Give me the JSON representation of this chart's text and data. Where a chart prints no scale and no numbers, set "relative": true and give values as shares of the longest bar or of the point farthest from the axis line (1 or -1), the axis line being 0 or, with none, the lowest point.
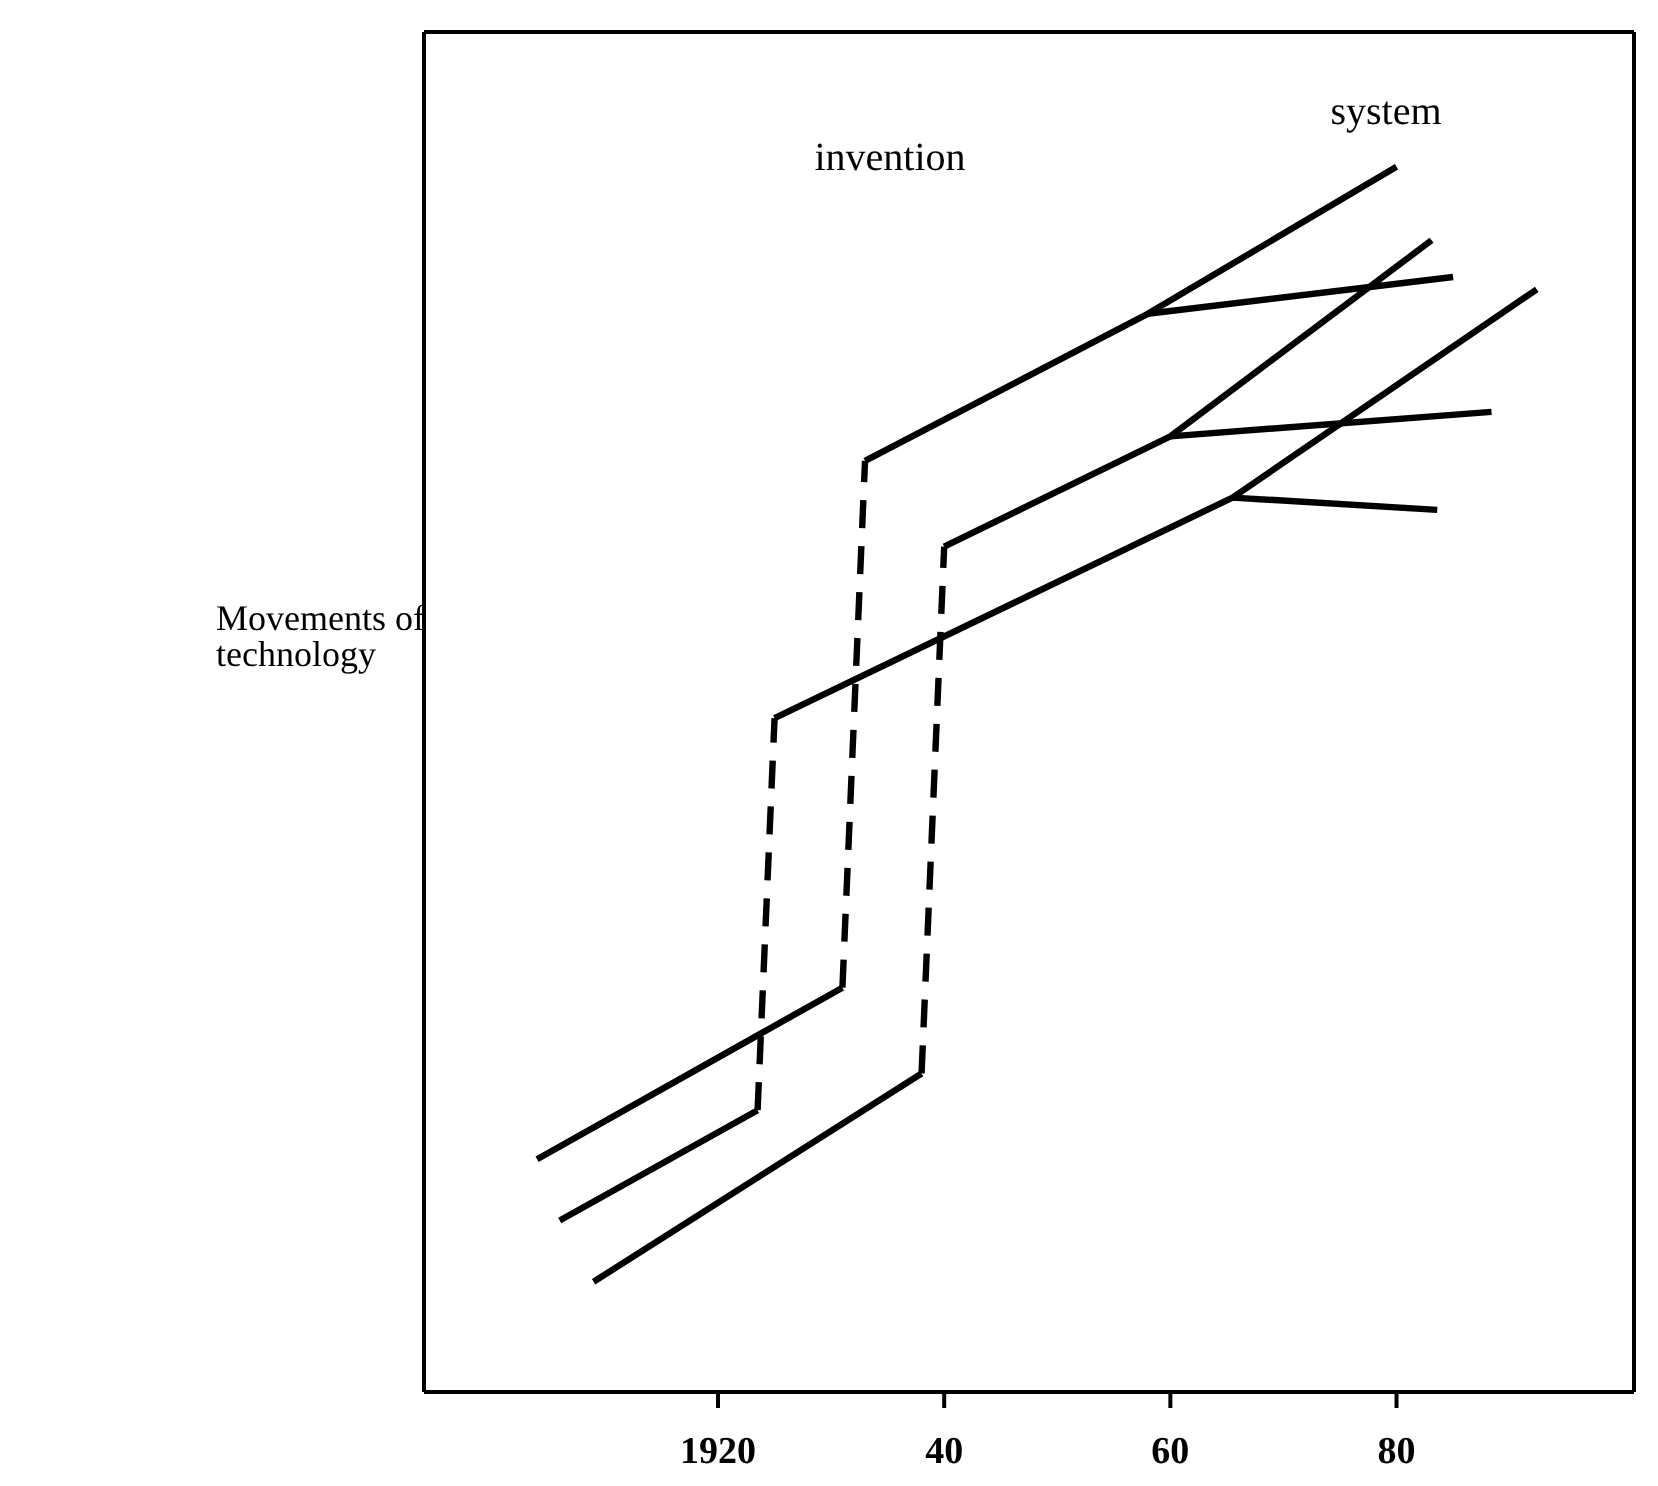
{
  "chart_data": {
    "type": "line",
    "relative": true,
    "ylabel": "Movements of technology",
    "annotations": [
      "invention",
      "system"
    ],
    "xlim": [
      1894,
      2001
    ],
    "xticks": [
      {
        "value": 1920,
        "label": "1920"
      },
      {
        "value": 1940,
        "label": "40"
      },
      {
        "value": 1960,
        "label": "60"
      },
      {
        "value": 1980,
        "label": "80"
      }
    ],
    "color": "#000000",
    "series": [
      {
        "x": [
          1904,
          1931
        ],
        "values": [
          0.19,
          0.33
        ]
      },
      {
        "x": [
          1931,
          1933
        ],
        "values": [
          0.33,
          0.76
        ],
        "line_style": "dashed"
      },
      {
        "x": [
          1933,
          1958,
          1980
        ],
        "values": [
          0.76,
          0.88,
          1.0
        ]
      },
      {
        "x": [
          1958,
          1985
        ],
        "values": [
          0.88,
          0.91
        ]
      },
      {
        "x": [
          1906,
          1923.5
        ],
        "values": [
          0.14,
          0.23
        ]
      },
      {
        "x": [
          1923.5,
          1925
        ],
        "values": [
          0.23,
          0.55
        ],
        "line_style": "dashed"
      },
      {
        "x": [
          1925,
          1965.5,
          1992.4
        ],
        "values": [
          0.55,
          0.73,
          0.9
        ]
      },
      {
        "x": [
          1965.5,
          1983.6
        ],
        "values": [
          0.73,
          0.72
        ]
      },
      {
        "x": [
          1909,
          1938
        ],
        "values": [
          0.09,
          0.26
        ]
      },
      {
        "x": [
          1938,
          1940
        ],
        "values": [
          0.26,
          0.69
        ],
        "line_style": "dashed"
      },
      {
        "x": [
          1940,
          1960,
          1983.1
        ],
        "values": [
          0.69,
          0.78,
          0.94
        ]
      },
      {
        "x": [
          1960,
          1988.4
        ],
        "values": [
          0.78,
          0.8
        ]
      }
    ]
  }
}
